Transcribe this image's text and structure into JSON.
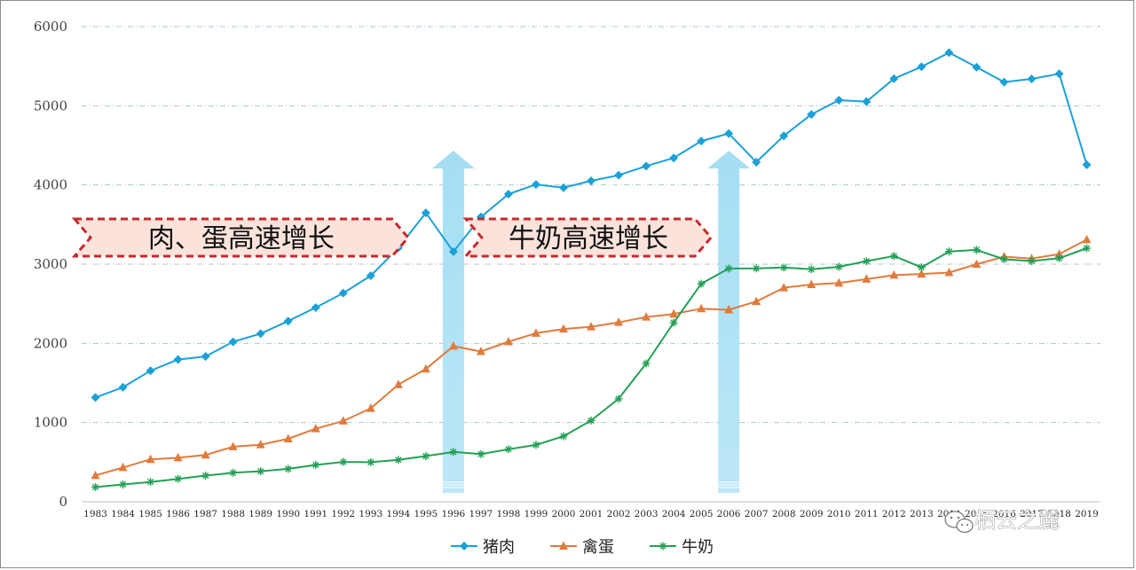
{
  "chart_data": {
    "type": "line",
    "x": [
      "1983",
      "1984",
      "1985",
      "1986",
      "1987",
      "1988",
      "1989",
      "1990",
      "1991",
      "1992",
      "1993",
      "1994",
      "1995",
      "1996",
      "1997",
      "1998",
      "1999",
      "2000",
      "2001",
      "2002",
      "2003",
      "2004",
      "2005",
      "2006",
      "2007",
      "2008",
      "2009",
      "2010",
      "2011",
      "2012",
      "2013",
      "2014",
      "2015",
      "2016",
      "2017",
      "2018",
      "2019"
    ],
    "ylim": [
      0,
      6000
    ],
    "yticks": [
      0,
      1000,
      2000,
      3000,
      4000,
      5000,
      6000
    ],
    "grid": "horizontal dash-dot",
    "legend_position": "bottom",
    "series": [
      {
        "name": "猪肉",
        "color": "#1ba1d8",
        "marker": "diamond",
        "values": [
          1316,
          1445,
          1654,
          1796,
          1835,
          2019,
          2123,
          2281,
          2452,
          2635,
          2854,
          3205,
          3648,
          3158,
          3596,
          3884,
          4006,
          3966,
          4052,
          4123,
          4239,
          4341,
          4555,
          4650,
          4288,
          4621,
          4891,
          5071,
          5053,
          5342,
          5493,
          5671,
          5487,
          5299,
          5340,
          5404,
          4255
        ]
      },
      {
        "name": "禽蛋",
        "color": "#e07b3c",
        "marker": "triangle",
        "values": [
          332,
          432,
          535,
          555,
          590,
          695,
          720,
          795,
          922,
          1020,
          1180,
          1479,
          1677,
          1965,
          1897,
          2021,
          2128,
          2182,
          2210,
          2265,
          2333,
          2371,
          2438,
          2424,
          2529,
          2702,
          2742,
          2762,
          2811,
          2861,
          2876,
          2894,
          2999,
          3095,
          3070,
          3128,
          3309
        ]
      },
      {
        "name": "牛奶",
        "color": "#22a055",
        "marker": "asterisk",
        "values": [
          185,
          218,
          250,
          289,
          330,
          366,
          385,
          415,
          465,
          503,
          499,
          529,
          576,
          629,
          601,
          663,
          718,
          827,
          1025,
          1300,
          1746,
          2261,
          2753,
          2945,
          2947,
          2957,
          2935,
          2966,
          3038,
          3103,
          2960,
          3160,
          3180,
          3062,
          3039,
          3075,
          3201
        ]
      }
    ],
    "annotations": [
      {
        "text": "肉、蛋高速增长",
        "span": [
          "1983",
          "1995"
        ]
      },
      {
        "text": "牛奶高速增长",
        "span": [
          "1996",
          "2006"
        ]
      }
    ],
    "arrows_at": [
      "1996",
      "2006"
    ]
  },
  "watermark": {
    "text": "栖云之麓",
    "icon": "wechat-icon"
  }
}
